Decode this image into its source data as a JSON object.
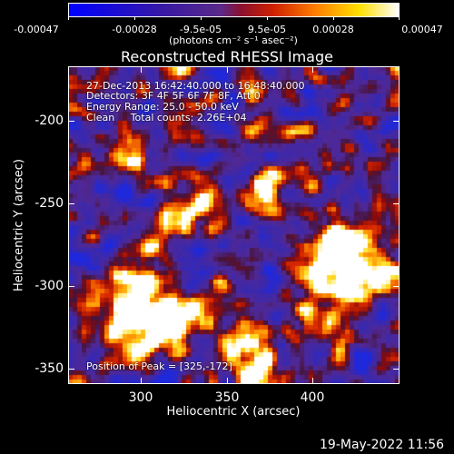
{
  "colorbar": {
    "tick_labels": [
      "-0.00047",
      "-0.00028",
      "-9.5e-05",
      "9.5e-05",
      "0.00028",
      "0.00047"
    ],
    "units": "(photons cm⁻² s⁻¹ asec⁻²)"
  },
  "plot": {
    "title": "Reconstructed RHESSI Image",
    "xlabel": "Heliocentric X (arcsec)",
    "ylabel": "Heliocentric Y (arcsec)",
    "x_ticks": [
      "300",
      "350",
      "400"
    ],
    "y_ticks": [
      "-200",
      "-250",
      "-300",
      "-350"
    ],
    "xlim": [
      260,
      445
    ],
    "ylim": [
      -363,
      -177
    ]
  },
  "annotations": {
    "time_range": "27-Dec-2013 16:42:40.000 to 16:48:40.000",
    "detectors": "Detectors: 3F 4F 5F 6F 7F 8F, Att 0",
    "energy": "Energy Range: 25.0 - 50.0 keV",
    "method": "Clean     Total counts: 2.26E+04",
    "peak": "Position of Peak = [325,-172]"
  },
  "footer": {
    "timestamp": "19-May-2022 11:56"
  },
  "colors": {
    "background": "#000000",
    "foreground": "#ffffff"
  }
}
